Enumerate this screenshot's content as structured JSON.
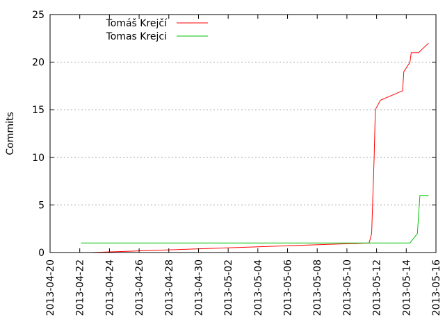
{
  "chart_data": {
    "type": "line",
    "title": "",
    "xlabel": "",
    "ylabel": "Commits",
    "xlim": [
      "2013-04-20",
      "2013-05-16"
    ],
    "ylim": [
      0,
      25
    ],
    "y_ticks": [
      0,
      5,
      10,
      15,
      20,
      25
    ],
    "x_ticks": [
      "2013-04-20",
      "2013-04-22",
      "2013-04-24",
      "2013-04-26",
      "2013-04-28",
      "2013-04-30",
      "2013-05-02",
      "2013-05-04",
      "2013-05-06",
      "2013-05-08",
      "2013-05-10",
      "2013-05-12",
      "2013-05-14",
      "2013-05-16"
    ],
    "grid": "horizontal dotted",
    "legend_position": "top-left",
    "series": [
      {
        "name": "Tomáš Krejčí",
        "color": "#ff0000",
        "points": [
          [
            "2013-04-22 18:00",
            0.0
          ],
          [
            "2013-05-11 12:00",
            1.0
          ],
          [
            "2013-05-11 16:00",
            2.0
          ],
          [
            "2013-05-11 20:00",
            10.0
          ],
          [
            "2013-05-11 22:00",
            15.0
          ],
          [
            "2013-05-12 06:00",
            16.0
          ],
          [
            "2013-05-13 18:00",
            17.0
          ],
          [
            "2013-05-13 20:00",
            19.0
          ],
          [
            "2013-05-14 06:00",
            20.0
          ],
          [
            "2013-05-14 08:00",
            21.0
          ],
          [
            "2013-05-14 20:00",
            21.0
          ],
          [
            "2013-05-15 12:00",
            22.0
          ]
        ]
      },
      {
        "name": "Tomas Krejci",
        "color": "#00c000",
        "points": [
          [
            "2013-04-22 02:00",
            1.0
          ],
          [
            "2013-05-14 06:00",
            1.0
          ],
          [
            "2013-05-14 18:00",
            2.0
          ],
          [
            "2013-05-14 22:00",
            6.0
          ],
          [
            "2013-05-15 12:00",
            6.0
          ]
        ]
      }
    ]
  }
}
